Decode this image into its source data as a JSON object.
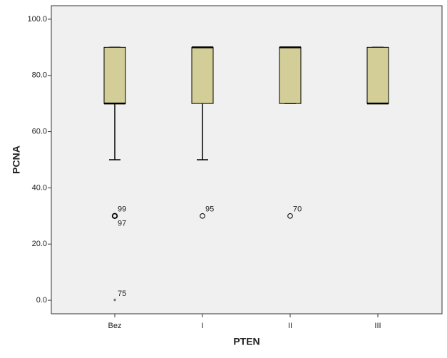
{
  "chart_data": {
    "type": "boxplot",
    "x_label": "PTEN",
    "y_label": "PCNA",
    "categories": [
      "Bez",
      "I",
      "II",
      "III"
    ],
    "whisker_low": [
      50,
      50,
      70,
      70
    ],
    "q1": [
      70,
      70,
      70,
      70
    ],
    "median": [
      70,
      90,
      90,
      70
    ],
    "q3": [
      90,
      90,
      90,
      90
    ],
    "whisker_high": [
      90,
      90,
      90,
      90
    ],
    "box_color": "#d3ce98",
    "outliers": [
      {
        "category": "Bez",
        "value": 30,
        "label": "99",
        "marker": "circle"
      },
      {
        "category": "Bez",
        "value": 30,
        "label": "97",
        "marker": "circle"
      },
      {
        "category": "Bez",
        "value": 0,
        "label": "75",
        "marker": "star"
      },
      {
        "category": "I",
        "value": 30,
        "label": "95",
        "marker": "circle"
      },
      {
        "category": "II",
        "value": 30,
        "label": "70",
        "marker": "circle"
      }
    ],
    "ylim": [
      -4.8,
      104.8
    ],
    "yticks": [
      {
        "value": 0,
        "label": "0.0"
      },
      {
        "value": 20,
        "label": "20.0"
      },
      {
        "value": 40,
        "label": "40.0"
      },
      {
        "value": 60,
        "label": "60.0"
      },
      {
        "value": 80,
        "label": "80.0"
      },
      {
        "value": 100,
        "label": "100.0"
      }
    ]
  }
}
